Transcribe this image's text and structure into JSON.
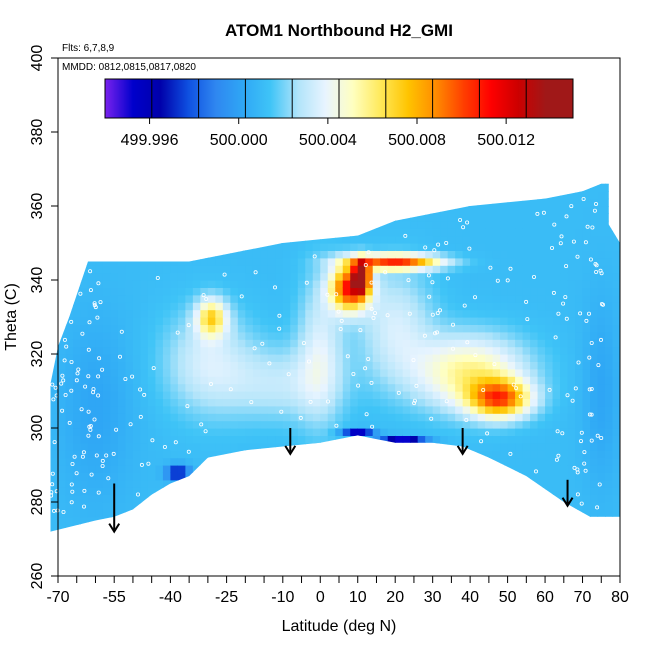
{
  "chart_data": {
    "type": "heatmap",
    "title": "ATOM1 Northbound H2_GMI",
    "flights_note": "Flts: 6,7,8,9",
    "date_note": "MMDD: 0812,0815,0817,0820",
    "xlabel": "Latitude (deg N)",
    "ylabel": "Theta (C)",
    "xlim": [
      -70,
      80
    ],
    "ylim": [
      260,
      400
    ],
    "x_ticks": [
      -70,
      -55,
      -40,
      -25,
      -10,
      0,
      10,
      20,
      30,
      40,
      50,
      60,
      70,
      80
    ],
    "x_tick_labels": [
      "-70",
      "-55",
      "-40",
      "-25",
      "-10",
      "0",
      "10",
      "20",
      "30",
      "40",
      "50",
      "60",
      "70",
      "80"
    ],
    "x_minor_ticks": [
      -65,
      -60,
      -50,
      -45,
      -35,
      -30,
      -20,
      -15,
      -5,
      5,
      15,
      25,
      35,
      45,
      55,
      65,
      75
    ],
    "y_ticks": [
      260,
      280,
      300,
      320,
      340,
      360,
      380,
      400
    ],
    "y_tick_labels": [
      "260",
      "280",
      "300",
      "320",
      "340",
      "360",
      "380",
      "400"
    ],
    "colorbar": {
      "range": [
        499.994,
        500.015
      ],
      "colors": [
        "#7a22ee",
        "#0000cc",
        "#0000aa",
        "#0e4fe0",
        "#2f86f0",
        "#2fa7f5",
        "#3fc4f7",
        "#b0e4fa",
        "#e8f4ff",
        "#ffffc0",
        "#ffe95a",
        "#ffc400",
        "#ff8c00",
        "#ff4000",
        "#ff0000",
        "#cc0000",
        "#a01818"
      ],
      "tick_values": [
        499.996,
        500.0,
        500.004,
        500.008,
        500.012
      ],
      "tick_labels": [
        "499.996",
        "500.000",
        "500.004",
        "500.008",
        "500.012"
      ]
    },
    "field": {
      "background_value": 500.0015,
      "domain_top": [
        [
          -72,
          312
        ],
        [
          -70,
          322
        ],
        [
          -67,
          330
        ],
        [
          -62,
          345
        ],
        [
          -35,
          345
        ],
        [
          -20,
          348
        ],
        [
          -10,
          350
        ],
        [
          0,
          351
        ],
        [
          10,
          352
        ],
        [
          20,
          356
        ],
        [
          40,
          360
        ],
        [
          60,
          362
        ],
        [
          70,
          364
        ],
        [
          75,
          366
        ],
        [
          77,
          366
        ],
        [
          77,
          355
        ],
        [
          80,
          350
        ],
        [
          80,
          276
        ]
      ],
      "domain_bottom": [
        [
          76,
          276
        ],
        [
          72,
          276
        ],
        [
          65,
          280
        ],
        [
          55,
          287
        ],
        [
          45,
          292
        ],
        [
          38,
          295
        ],
        [
          30,
          296
        ],
        [
          20,
          296
        ],
        [
          10,
          298
        ],
        [
          0,
          296
        ],
        [
          -10,
          295
        ],
        [
          -20,
          294
        ],
        [
          -30,
          292
        ],
        [
          -35,
          287
        ],
        [
          -40,
          285
        ],
        [
          -45,
          282
        ],
        [
          -50,
          278
        ],
        [
          -55,
          276
        ],
        [
          -60,
          275
        ],
        [
          -72,
          272
        ]
      ],
      "features": [
        {
          "lat": 8,
          "theta": 338,
          "value": 500.012,
          "rlat": 5,
          "rth": 6
        },
        {
          "lat": 11,
          "theta": 341,
          "value": 500.014,
          "rlat": 2,
          "rth": 4
        },
        {
          "lat": 20,
          "theta": 345,
          "value": 500.011,
          "rlat": 12,
          "rth": 2
        },
        {
          "lat": 48,
          "theta": 308,
          "value": 500.0095,
          "rlat": 8,
          "rth": 5
        },
        {
          "lat": 40,
          "theta": 315,
          "value": 500.0065,
          "rlat": 15,
          "rth": 10
        },
        {
          "lat": -29,
          "theta": 330,
          "value": 500.007,
          "rlat": 4,
          "rth": 5
        },
        {
          "lat": -30,
          "theta": 318,
          "value": 500.004,
          "rlat": 12,
          "rth": 14
        },
        {
          "lat": 0,
          "theta": 322,
          "value": 500.004,
          "rlat": 6,
          "rth": 20
        },
        {
          "lat": 20,
          "theta": 328,
          "value": 500.004,
          "rlat": 10,
          "rth": 15
        },
        {
          "lat": -10,
          "theta": 312,
          "value": 500.0035,
          "rlat": 15,
          "rth": 10
        },
        {
          "lat": -38,
          "theta": 288,
          "value": 499.996,
          "rlat": 3,
          "rth": 2
        },
        {
          "lat": 10,
          "theta": 299,
          "value": 499.995,
          "rlat": 4,
          "rth": 1
        },
        {
          "lat": 22,
          "theta": 297,
          "value": 499.995,
          "rlat": 6,
          "rth": 1
        },
        {
          "lat": -60,
          "theta": 305,
          "value": 500.0005,
          "rlat": 10,
          "rth": 25
        },
        {
          "lat": 75,
          "theta": 310,
          "value": 500.0005,
          "rlat": 5,
          "rth": 25
        }
      ],
      "arrows": [
        {
          "lat": -55,
          "theta_top": 285,
          "theta_tip": 272
        },
        {
          "lat": -8,
          "theta_top": 300,
          "theta_tip": 293
        },
        {
          "lat": 38,
          "theta_top": 300,
          "theta_tip": 293
        },
        {
          "lat": 66,
          "theta_top": 286,
          "theta_tip": 279
        }
      ]
    }
  }
}
